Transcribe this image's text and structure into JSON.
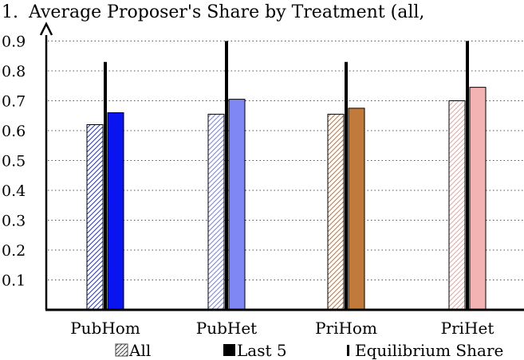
{
  "chart_data": {
    "type": "bar",
    "title": "Average Proposer's Share by Treatment (all,",
    "title_prefix": "1.",
    "categories": [
      "PubHom",
      "PubHet",
      "PriHom",
      "PriHet"
    ],
    "series": [
      {
        "name": "All",
        "style": "hatched",
        "values": [
          0.62,
          0.655,
          0.655,
          0.7
        ]
      },
      {
        "name": "Last 5",
        "style": "solid",
        "values": [
          0.66,
          0.705,
          0.675,
          0.745
        ]
      }
    ],
    "equilibrium": {
      "name": "Equilibrium Share",
      "values": [
        0.83,
        0.9,
        0.83,
        0.9
      ]
    },
    "colors": {
      "all": [
        "#2b3cf0",
        "#7a86f0",
        "#c7793d",
        "#f0a6a6"
      ],
      "last5": [
        "#0a14f0",
        "#7f87f5",
        "#c07a3a",
        "#f4b3b3"
      ]
    },
    "yticks": [
      "0.1",
      "0.2",
      "0.3",
      "0.4",
      "0.5",
      "0.6",
      "0.7",
      "0.8",
      "0.9"
    ],
    "ylim": [
      0,
      1.0
    ],
    "grid": true,
    "legend": {
      "position": "bottom",
      "all_label": "All",
      "last5_label": "Last 5",
      "eq_label": "Equilibrium Share"
    }
  }
}
